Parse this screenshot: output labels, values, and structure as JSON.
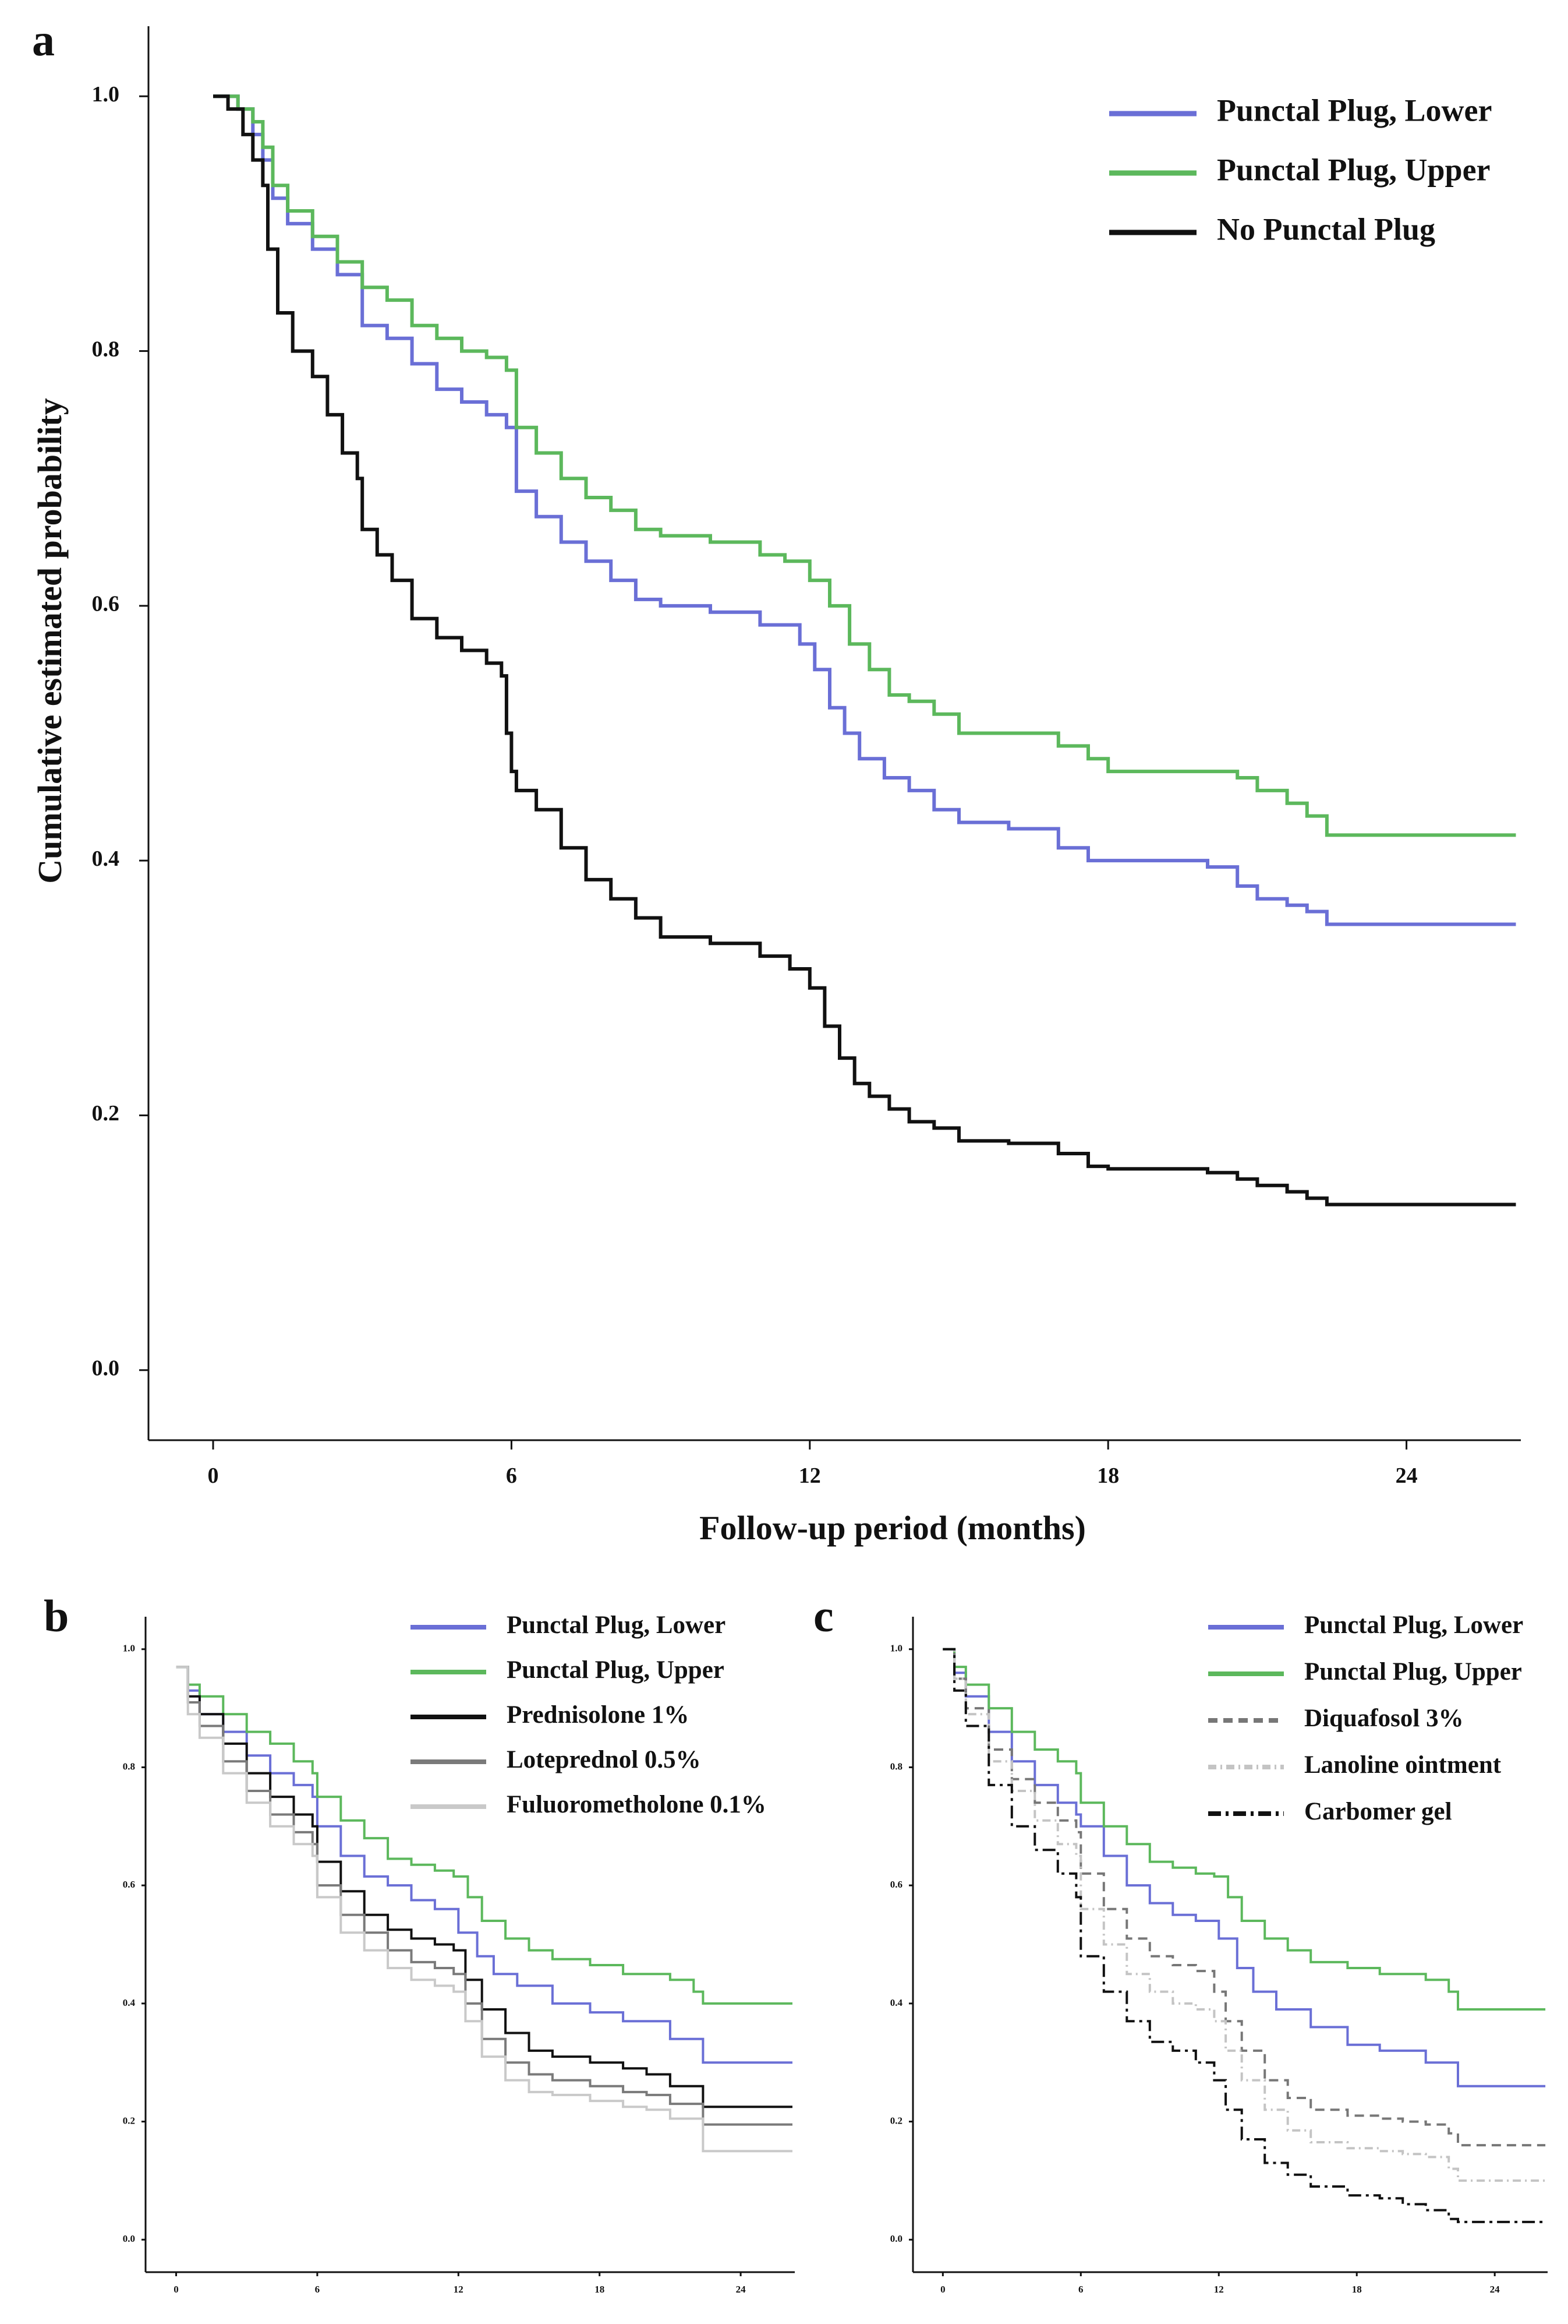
{
  "chart_data": [
    {
      "panel": "a",
      "type": "line",
      "subtype": "kaplan-meier",
      "xlabel": "Follow-up period (months)",
      "ylabel": "Cumulative estimated probability",
      "xlim": [
        -1.3,
        26.3
      ],
      "ylim": [
        -0.055,
        1.055
      ],
      "xticks": [
        0,
        6,
        12,
        18,
        24
      ],
      "xtick_labels": [
        "0",
        "6",
        "12",
        "18",
        "24"
      ],
      "yticks": [
        0.0,
        0.2,
        0.4,
        0.6,
        0.8,
        1.0
      ],
      "ytick_labels": [
        "0.0",
        "0.2",
        "0.4",
        "0.6",
        "0.8",
        "1.0"
      ],
      "legend_position": "top-right",
      "series": [
        {
          "name": "Punctal Plug, Lower",
          "color": "#6a6fd6",
          "dash": "solid",
          "x": [
            0,
            0.5,
            0.8,
            1.0,
            1.2,
            1.5,
            2.0,
            2.5,
            3.0,
            3.5,
            4.0,
            4.5,
            5.0,
            5.5,
            5.9,
            6.1,
            6.5,
            7.0,
            7.5,
            8.0,
            8.5,
            9.0,
            10.0,
            11.0,
            11.8,
            12.1,
            12.4,
            12.7,
            13.0,
            13.5,
            14.0,
            14.5,
            15.0,
            16.0,
            17.0,
            17.6,
            18.0,
            19.0,
            20.0,
            20.6,
            21.0,
            21.6,
            22.0,
            22.4,
            26.2
          ],
          "y": [
            1.0,
            0.99,
            0.97,
            0.95,
            0.92,
            0.9,
            0.88,
            0.86,
            0.82,
            0.81,
            0.79,
            0.77,
            0.76,
            0.75,
            0.74,
            0.69,
            0.67,
            0.65,
            0.635,
            0.62,
            0.605,
            0.6,
            0.595,
            0.585,
            0.57,
            0.55,
            0.52,
            0.5,
            0.48,
            0.465,
            0.455,
            0.44,
            0.43,
            0.425,
            0.41,
            0.4,
            0.4,
            0.4,
            0.395,
            0.38,
            0.37,
            0.365,
            0.36,
            0.35,
            0.35
          ]
        },
        {
          "name": "Punctal Plug, Upper",
          "color": "#5cb85c",
          "dash": "solid",
          "x": [
            0,
            0.5,
            0.8,
            1.0,
            1.2,
            1.5,
            2.0,
            2.5,
            3.0,
            3.5,
            4.0,
            4.5,
            5.0,
            5.5,
            5.9,
            6.1,
            6.5,
            7.0,
            7.5,
            8.0,
            8.5,
            9.0,
            10.0,
            11.0,
            11.5,
            12.0,
            12.4,
            12.8,
            13.2,
            13.6,
            14.0,
            14.5,
            15.0,
            16.0,
            17.0,
            17.6,
            18.0,
            19.0,
            20.0,
            20.6,
            21.0,
            21.6,
            22.0,
            22.4,
            26.2
          ],
          "y": [
            1.0,
            0.99,
            0.98,
            0.96,
            0.93,
            0.91,
            0.89,
            0.87,
            0.85,
            0.84,
            0.82,
            0.81,
            0.8,
            0.795,
            0.785,
            0.74,
            0.72,
            0.7,
            0.685,
            0.675,
            0.66,
            0.655,
            0.65,
            0.64,
            0.635,
            0.62,
            0.6,
            0.57,
            0.55,
            0.53,
            0.525,
            0.515,
            0.5,
            0.5,
            0.49,
            0.48,
            0.47,
            0.47,
            0.47,
            0.465,
            0.455,
            0.445,
            0.435,
            0.42,
            0.42
          ]
        },
        {
          "name": "No Punctal Plug",
          "color": "#111111",
          "dash": "solid",
          "x": [
            0,
            0.3,
            0.6,
            0.8,
            1.0,
            1.1,
            1.3,
            1.6,
            2.0,
            2.3,
            2.6,
            2.9,
            3.0,
            3.3,
            3.6,
            4.0,
            4.5,
            5.0,
            5.5,
            5.8,
            5.9,
            6.0,
            6.1,
            6.5,
            7.0,
            7.5,
            8.0,
            8.5,
            9.0,
            10.0,
            11.0,
            11.6,
            12.0,
            12.3,
            12.6,
            12.9,
            13.2,
            13.6,
            14.0,
            14.5,
            15.0,
            16.0,
            17.0,
            17.6,
            18.0,
            19.0,
            20.0,
            20.6,
            21.0,
            21.6,
            22.0,
            22.4,
            26.2
          ],
          "y": [
            1.0,
            0.99,
            0.97,
            0.95,
            0.93,
            0.88,
            0.83,
            0.8,
            0.78,
            0.75,
            0.72,
            0.7,
            0.66,
            0.64,
            0.62,
            0.59,
            0.575,
            0.565,
            0.555,
            0.545,
            0.5,
            0.47,
            0.455,
            0.44,
            0.41,
            0.385,
            0.37,
            0.355,
            0.34,
            0.335,
            0.325,
            0.315,
            0.3,
            0.27,
            0.245,
            0.225,
            0.215,
            0.205,
            0.195,
            0.19,
            0.18,
            0.178,
            0.17,
            0.16,
            0.158,
            0.158,
            0.155,
            0.15,
            0.145,
            0.14,
            0.135,
            0.13,
            0.13
          ]
        }
      ]
    },
    {
      "panel": "b",
      "type": "line",
      "subtype": "kaplan-meier",
      "xlabel": "",
      "ylabel": "",
      "xlim": [
        -1.3,
        26.3
      ],
      "ylim": [
        -0.055,
        1.055
      ],
      "xticks": [
        0,
        6,
        12,
        18,
        24
      ],
      "xtick_labels": [
        "0",
        "6",
        "12",
        "18",
        "24"
      ],
      "yticks": [
        0.0,
        0.2,
        0.4,
        0.6,
        0.8,
        1.0
      ],
      "ytick_labels": [
        "0.0",
        "0.2",
        "0.4",
        "0.6",
        "0.8",
        "1.0"
      ],
      "legend_position": "top-right",
      "series": [
        {
          "name": "Punctal Plug, Lower",
          "color": "#6a6fd6",
          "dash": "solid",
          "x": [
            0,
            0.5,
            1.0,
            2.0,
            3.0,
            4.0,
            5.0,
            5.8,
            6.0,
            7.0,
            8.0,
            9.0,
            10.0,
            11.0,
            12.0,
            12.8,
            13.5,
            14.5,
            16.0,
            17.6,
            19.0,
            21.0,
            22.4,
            26.2
          ],
          "y": [
            0.97,
            0.93,
            0.89,
            0.86,
            0.82,
            0.79,
            0.77,
            0.75,
            0.7,
            0.65,
            0.615,
            0.6,
            0.575,
            0.56,
            0.52,
            0.48,
            0.45,
            0.43,
            0.4,
            0.385,
            0.37,
            0.34,
            0.3,
            0.3
          ]
        },
        {
          "name": "Punctal Plug, Upper",
          "color": "#5cb85c",
          "dash": "solid",
          "x": [
            0,
            0.5,
            1.0,
            2.0,
            3.0,
            4.0,
            5.0,
            5.8,
            6.0,
            7.0,
            8.0,
            9.0,
            10.0,
            11.0,
            11.8,
            12.4,
            13.0,
            14.0,
            15.0,
            16.0,
            17.6,
            19.0,
            21.0,
            22.0,
            22.4,
            26.2
          ],
          "y": [
            0.97,
            0.94,
            0.92,
            0.89,
            0.86,
            0.84,
            0.81,
            0.79,
            0.75,
            0.71,
            0.68,
            0.645,
            0.635,
            0.625,
            0.615,
            0.58,
            0.54,
            0.51,
            0.49,
            0.475,
            0.465,
            0.45,
            0.44,
            0.42,
            0.4,
            0.4
          ]
        },
        {
          "name": "Prednisolone 1%",
          "color": "#111111",
          "dash": "solid",
          "x": [
            0,
            0.5,
            1.0,
            2.0,
            3.0,
            4.0,
            5.0,
            5.8,
            6.0,
            7.0,
            8.0,
            9.0,
            10.0,
            11.0,
            11.8,
            12.3,
            13.0,
            14.0,
            15.0,
            16.0,
            17.6,
            19.0,
            20.0,
            21.0,
            22.4,
            26.2
          ],
          "y": [
            0.97,
            0.92,
            0.89,
            0.84,
            0.79,
            0.75,
            0.72,
            0.7,
            0.64,
            0.59,
            0.55,
            0.525,
            0.51,
            0.5,
            0.49,
            0.44,
            0.39,
            0.35,
            0.32,
            0.31,
            0.3,
            0.29,
            0.28,
            0.26,
            0.225,
            0.225
          ]
        },
        {
          "name": "Loteprednol 0.5%",
          "color": "#7a7a7a",
          "dash": "solid",
          "x": [
            0,
            0.5,
            1.0,
            2.0,
            3.0,
            4.0,
            5.0,
            5.8,
            6.0,
            7.0,
            8.0,
            9.0,
            10.0,
            11.0,
            11.8,
            12.3,
            13.0,
            14.0,
            15.0,
            16.0,
            17.6,
            19.0,
            20.0,
            21.0,
            22.4,
            26.2
          ],
          "y": [
            0.97,
            0.91,
            0.87,
            0.81,
            0.76,
            0.72,
            0.69,
            0.67,
            0.6,
            0.55,
            0.52,
            0.49,
            0.47,
            0.46,
            0.45,
            0.4,
            0.34,
            0.3,
            0.28,
            0.27,
            0.26,
            0.25,
            0.245,
            0.23,
            0.195,
            0.195
          ]
        },
        {
          "name": "Fuluorometholone 0.1%",
          "color": "#c9c9c9",
          "dash": "solid",
          "x": [
            0,
            0.5,
            1.0,
            2.0,
            3.0,
            4.0,
            5.0,
            5.8,
            6.0,
            7.0,
            8.0,
            9.0,
            10.0,
            11.0,
            11.8,
            12.3,
            13.0,
            14.0,
            15.0,
            16.0,
            17.6,
            19.0,
            20.0,
            21.0,
            22.4,
            26.2
          ],
          "y": [
            0.97,
            0.89,
            0.85,
            0.79,
            0.74,
            0.7,
            0.67,
            0.65,
            0.58,
            0.52,
            0.49,
            0.46,
            0.44,
            0.43,
            0.42,
            0.37,
            0.31,
            0.27,
            0.25,
            0.245,
            0.235,
            0.225,
            0.22,
            0.205,
            0.15,
            0.15
          ]
        }
      ]
    },
    {
      "panel": "c",
      "type": "line",
      "subtype": "kaplan-meier",
      "xlabel": "",
      "ylabel": "",
      "xlim": [
        -1.3,
        26.3
      ],
      "ylim": [
        -0.055,
        1.055
      ],
      "xticks": [
        0,
        6,
        12,
        18,
        24
      ],
      "xtick_labels": [
        "0",
        "6",
        "12",
        "18",
        "24"
      ],
      "yticks": [
        0.0,
        0.2,
        0.4,
        0.6,
        0.8,
        1.0
      ],
      "ytick_labels": [
        "0.0",
        "0.2",
        "0.4",
        "0.6",
        "0.8",
        "1.0"
      ],
      "legend_position": "top-right",
      "series": [
        {
          "name": "Punctal Plug, Lower",
          "color": "#6a6fd6",
          "dash": "solid",
          "x": [
            0,
            0.5,
            1.0,
            2.0,
            3.0,
            4.0,
            5.0,
            5.8,
            6.0,
            7.0,
            8.0,
            9.0,
            10.0,
            11.0,
            12.0,
            12.8,
            13.5,
            14.5,
            16.0,
            17.6,
            19.0,
            21.0,
            22.4,
            26.2
          ],
          "y": [
            1.0,
            0.96,
            0.92,
            0.86,
            0.81,
            0.77,
            0.74,
            0.72,
            0.7,
            0.65,
            0.6,
            0.57,
            0.55,
            0.54,
            0.51,
            0.46,
            0.42,
            0.39,
            0.36,
            0.33,
            0.32,
            0.3,
            0.26,
            0.26
          ]
        },
        {
          "name": "Punctal Plug, Upper",
          "color": "#5cb85c",
          "dash": "solid",
          "x": [
            0,
            0.5,
            1.0,
            2.0,
            3.0,
            4.0,
            5.0,
            5.8,
            6.0,
            7.0,
            8.0,
            9.0,
            10.0,
            11.0,
            11.8,
            12.4,
            13.0,
            14.0,
            15.0,
            16.0,
            17.6,
            19.0,
            21.0,
            22.0,
            22.4,
            26.2
          ],
          "y": [
            1.0,
            0.97,
            0.94,
            0.9,
            0.86,
            0.83,
            0.81,
            0.79,
            0.74,
            0.7,
            0.67,
            0.64,
            0.63,
            0.62,
            0.615,
            0.58,
            0.54,
            0.51,
            0.49,
            0.47,
            0.46,
            0.45,
            0.44,
            0.42,
            0.39,
            0.39
          ]
        },
        {
          "name": "Diquafosol 3%",
          "color": "#777777",
          "dash": "dash",
          "x": [
            0,
            0.5,
            1.0,
            2.0,
            3.0,
            4.0,
            5.0,
            5.8,
            6.0,
            7.0,
            8.0,
            9.0,
            10.0,
            11.0,
            11.8,
            12.3,
            13.0,
            14.0,
            15.0,
            16.0,
            17.6,
            19.0,
            20.0,
            21.0,
            22.0,
            22.4,
            26.2
          ],
          "y": [
            1.0,
            0.95,
            0.9,
            0.83,
            0.78,
            0.74,
            0.71,
            0.69,
            0.62,
            0.56,
            0.51,
            0.48,
            0.465,
            0.455,
            0.42,
            0.37,
            0.32,
            0.27,
            0.24,
            0.22,
            0.21,
            0.205,
            0.2,
            0.195,
            0.18,
            0.16,
            0.16
          ]
        },
        {
          "name": "Lanoline ointment",
          "color": "#c4c4c4",
          "dash": "dashdot",
          "x": [
            0,
            0.5,
            1.0,
            2.0,
            3.0,
            4.0,
            5.0,
            5.8,
            6.0,
            7.0,
            8.0,
            9.0,
            10.0,
            11.0,
            11.8,
            12.3,
            13.0,
            14.0,
            15.0,
            16.0,
            17.6,
            19.0,
            20.0,
            21.0,
            22.0,
            22.4,
            26.2
          ],
          "y": [
            1.0,
            0.95,
            0.89,
            0.81,
            0.76,
            0.71,
            0.67,
            0.65,
            0.56,
            0.5,
            0.45,
            0.42,
            0.4,
            0.39,
            0.37,
            0.32,
            0.27,
            0.22,
            0.185,
            0.165,
            0.155,
            0.15,
            0.145,
            0.14,
            0.12,
            0.1,
            0.1
          ]
        },
        {
          "name": "Carbomer gel",
          "color": "#111111",
          "dash": "longdashdot",
          "x": [
            0,
            0.5,
            1.0,
            2.0,
            3.0,
            4.0,
            5.0,
            5.8,
            6.0,
            7.0,
            8.0,
            9.0,
            10.0,
            11.0,
            11.8,
            12.3,
            13.0,
            14.0,
            15.0,
            16.0,
            17.6,
            19.0,
            20.0,
            21.0,
            22.0,
            22.4,
            26.2
          ],
          "y": [
            1.0,
            0.93,
            0.87,
            0.77,
            0.7,
            0.66,
            0.62,
            0.58,
            0.48,
            0.42,
            0.37,
            0.335,
            0.32,
            0.3,
            0.27,
            0.22,
            0.17,
            0.13,
            0.11,
            0.09,
            0.075,
            0.07,
            0.06,
            0.05,
            0.035,
            0.03,
            0.03
          ]
        }
      ]
    }
  ]
}
